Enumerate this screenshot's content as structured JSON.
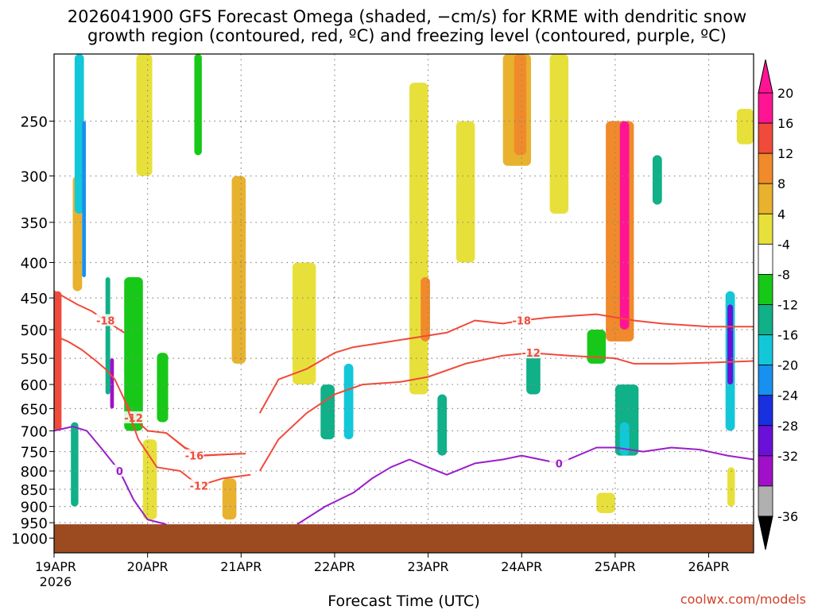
{
  "title_line1": "2026041900 GFS Forecast Omega (shaded, −cm/s) for KRME with dendritic snow",
  "title_line2": "growth region (contoured, red, ºC) and freezing level (contoured, purple, ºC)",
  "credit": "coolwx.com/models",
  "colors": {
    "ground": "#9c4a20",
    "dgz": "#f04a3a",
    "freezing": "#9a1ec8",
    "grid": "#888888"
  },
  "chart_data": {
    "type": "heatmap",
    "xlabel": "Forecast Time (UTC)",
    "ylabel": "",
    "x_ticks": [
      "19APR",
      "20APR",
      "21APR",
      "22APR",
      "23APR",
      "24APR",
      "25APR",
      "26APR"
    ],
    "x_year": "2026",
    "x_range_days": [
      0,
      7.48
    ],
    "y_scale": "log-pressure",
    "y_range_hpa": [
      1050,
      200
    ],
    "y_ticks": [
      250,
      300,
      350,
      400,
      450,
      500,
      550,
      600,
      650,
      700,
      750,
      800,
      850,
      900,
      950,
      1000
    ],
    "ground_top_hpa": 955,
    "colorbar": {
      "labels": [
        "20",
        "16",
        "12",
        "8",
        "4",
        "-4",
        "-8",
        "-12",
        "-16",
        "-20",
        "-24",
        "-28",
        "-32",
        "-36"
      ],
      "levels": [
        {
          "color": "#ff1494"
        },
        {
          "color": "#f04a3a"
        },
        {
          "color": "#f08a2a"
        },
        {
          "color": "#e8b22e"
        },
        {
          "color": "#e8e03a"
        },
        {
          "color": "#ffffff"
        },
        {
          "color": "#18c818"
        },
        {
          "color": "#10b088"
        },
        {
          "color": "#12c8d8"
        },
        {
          "color": "#1890f0"
        },
        {
          "color": "#1830e0"
        },
        {
          "color": "#6a10d8"
        },
        {
          "color": "#a010c8"
        },
        {
          "color": "#b0b0b0"
        }
      ],
      "arrow_top_color": "#ff1494",
      "arrow_bottom_color": "#000000"
    },
    "omega_cells": [
      {
        "t0": 0.2,
        "t1": 0.3,
        "p0": 300,
        "p1": 440,
        "v": 10
      },
      {
        "t0": 0.0,
        "t1": 0.08,
        "p0": 440,
        "p1": 700,
        "v": 18
      },
      {
        "t0": 0.22,
        "t1": 0.32,
        "p0": 200,
        "p1": 340,
        "v": -12
      },
      {
        "t0": 0.3,
        "t1": 0.34,
        "p0": 250,
        "p1": 420,
        "v": -16
      },
      {
        "t0": 0.18,
        "t1": 0.26,
        "p0": 680,
        "p1": 900,
        "v": -10
      },
      {
        "t0": 0.55,
        "t1": 0.6,
        "p0": 420,
        "p1": 620,
        "v": -10
      },
      {
        "t0": 0.6,
        "t1": 0.64,
        "p0": 550,
        "p1": 650,
        "v": -28
      },
      {
        "t0": 0.75,
        "t1": 0.95,
        "p0": 420,
        "p1": 700,
        "v": -6
      },
      {
        "t0": 0.88,
        "t1": 1.05,
        "p0": 200,
        "p1": 300,
        "v": 6
      },
      {
        "t0": 0.95,
        "t1": 1.1,
        "p0": 720,
        "p1": 940,
        "v": 6
      },
      {
        "t0": 1.5,
        "t1": 1.58,
        "p0": 200,
        "p1": 280,
        "v": -6
      },
      {
        "t0": 1.1,
        "t1": 1.22,
        "p0": 540,
        "p1": 680,
        "v": -6
      },
      {
        "t0": 1.9,
        "t1": 2.05,
        "p0": 300,
        "p1": 560,
        "v": 8
      },
      {
        "t0": 1.8,
        "t1": 1.95,
        "p0": 820,
        "p1": 940,
        "v": 10
      },
      {
        "t0": 2.55,
        "t1": 2.8,
        "p0": 400,
        "p1": 600,
        "v": 5
      },
      {
        "t0": 3.1,
        "t1": 3.2,
        "p0": 560,
        "p1": 720,
        "v": -14
      },
      {
        "t0": 2.85,
        "t1": 3.0,
        "p0": 600,
        "p1": 720,
        "v": -8
      },
      {
        "t0": 3.8,
        "t1": 4.0,
        "p0": 220,
        "p1": 620,
        "v": 6
      },
      {
        "t0": 3.92,
        "t1": 4.02,
        "p0": 420,
        "p1": 520,
        "v": 12
      },
      {
        "t0": 4.1,
        "t1": 4.2,
        "p0": 620,
        "p1": 760,
        "v": -8
      },
      {
        "t0": 4.3,
        "t1": 4.5,
        "p0": 250,
        "p1": 400,
        "v": 5
      },
      {
        "t0": 4.8,
        "t1": 5.1,
        "p0": 200,
        "p1": 290,
        "v": 8
      },
      {
        "t0": 4.92,
        "t1": 5.05,
        "p0": 200,
        "p1": 280,
        "v": 12
      },
      {
        "t0": 5.3,
        "t1": 5.5,
        "p0": 200,
        "p1": 340,
        "v": 6
      },
      {
        "t0": 5.05,
        "t1": 5.2,
        "p0": 540,
        "p1": 620,
        "v": -8
      },
      {
        "t0": 5.7,
        "t1": 5.9,
        "p0": 500,
        "p1": 560,
        "v": -6
      },
      {
        "t0": 5.9,
        "t1": 6.2,
        "p0": 250,
        "p1": 520,
        "v": 12
      },
      {
        "t0": 6.05,
        "t1": 6.15,
        "p0": 250,
        "p1": 500,
        "v": 20
      },
      {
        "t0": 6.0,
        "t1": 6.25,
        "p0": 600,
        "p1": 760,
        "v": -8
      },
      {
        "t0": 6.05,
        "t1": 6.15,
        "p0": 680,
        "p1": 760,
        "v": -14
      },
      {
        "t0": 6.4,
        "t1": 6.5,
        "p0": 280,
        "p1": 330,
        "v": -10
      },
      {
        "t0": 5.8,
        "t1": 6.0,
        "p0": 860,
        "p1": 920,
        "v": 6
      },
      {
        "t0": 7.18,
        "t1": 7.28,
        "p0": 440,
        "p1": 700,
        "v": -14
      },
      {
        "t0": 7.2,
        "t1": 7.26,
        "p0": 460,
        "p1": 600,
        "v": -24
      },
      {
        "t0": 7.3,
        "t1": 7.48,
        "p0": 240,
        "p1": 270,
        "v": 6
      },
      {
        "t0": 7.2,
        "t1": 7.28,
        "p0": 790,
        "p1": 900,
        "v": 6
      }
    ],
    "contours": [
      {
        "label": "-18",
        "color": "dgz",
        "points": [
          [
            0,
            440
          ],
          [
            0.25,
            460
          ],
          [
            0.4,
            470
          ],
          [
            0.55,
            485
          ],
          [
            0.65,
            495
          ],
          [
            0.75,
            505
          ]
        ]
      },
      {
        "label": "-12",
        "color": "dgz",
        "points": [
          [
            0,
            510
          ],
          [
            0.15,
            520
          ],
          [
            0.3,
            535
          ],
          [
            0.45,
            555
          ],
          [
            0.55,
            570
          ],
          [
            0.65,
            590
          ],
          [
            0.75,
            630
          ],
          [
            0.85,
            670
          ],
          [
            1.0,
            700
          ],
          [
            1.2,
            705
          ],
          [
            1.4,
            740
          ],
          [
            1.6,
            760
          ],
          [
            2.0,
            755
          ]
        ]
      },
      {
        "label": "-16",
        "color": "dgz",
        "points": [
          [
            1.2,
            705
          ],
          [
            1.5,
            760
          ],
          [
            2.05,
            755
          ]
        ]
      },
      {
        "label": "-12",
        "color": "dgz",
        "points": [
          [
            0.75,
            630
          ],
          [
            0.9,
            720
          ],
          [
            1.1,
            790
          ],
          [
            1.35,
            800
          ],
          [
            1.55,
            840
          ],
          [
            1.8,
            820
          ],
          [
            2.1,
            810
          ]
        ]
      },
      {
        "label": "-18",
        "color": "dgz",
        "points": [
          [
            2.2,
            660
          ],
          [
            2.4,
            590
          ],
          [
            2.7,
            570
          ],
          [
            3.0,
            540
          ],
          [
            3.2,
            530
          ],
          [
            3.6,
            520
          ],
          [
            4.0,
            510
          ],
          [
            4.2,
            505
          ],
          [
            4.5,
            485
          ],
          [
            4.8,
            490
          ],
          [
            5.0,
            485
          ],
          [
            5.3,
            480
          ],
          [
            5.8,
            475
          ],
          [
            6.2,
            485
          ],
          [
            6.5,
            490
          ],
          [
            7.0,
            495
          ],
          [
            7.48,
            495
          ]
        ]
      },
      {
        "label": "-12",
        "color": "dgz",
        "points": [
          [
            2.2,
            800
          ],
          [
            2.4,
            720
          ],
          [
            2.7,
            660
          ],
          [
            3.0,
            620
          ],
          [
            3.3,
            600
          ],
          [
            3.7,
            595
          ],
          [
            4.0,
            585
          ],
          [
            4.4,
            560
          ],
          [
            4.8,
            545
          ],
          [
            5.1,
            540
          ],
          [
            5.5,
            545
          ],
          [
            6.0,
            550
          ],
          [
            6.2,
            560
          ],
          [
            6.6,
            560
          ],
          [
            7.0,
            558
          ],
          [
            7.48,
            555
          ]
        ]
      },
      {
        "label": "0",
        "color": "freezing",
        "points": [
          [
            0,
            700
          ],
          [
            0.2,
            690
          ],
          [
            0.35,
            700
          ],
          [
            0.5,
            740
          ],
          [
            0.7,
            800
          ],
          [
            0.85,
            880
          ],
          [
            1.0,
            940
          ],
          [
            1.2,
            955
          ]
        ]
      },
      {
        "label": "0",
        "color": "freezing",
        "points": [
          [
            2.6,
            955
          ],
          [
            2.9,
            900
          ],
          [
            3.2,
            860
          ],
          [
            3.4,
            820
          ],
          [
            3.6,
            790
          ],
          [
            3.8,
            770
          ],
          [
            4.0,
            790
          ],
          [
            4.2,
            810
          ],
          [
            4.5,
            780
          ],
          [
            4.8,
            770
          ],
          [
            5.0,
            760
          ],
          [
            5.2,
            770
          ],
          [
            5.4,
            780
          ],
          [
            5.8,
            740
          ],
          [
            6.0,
            740
          ],
          [
            6.3,
            750
          ],
          [
            6.6,
            740
          ],
          [
            6.9,
            745
          ],
          [
            7.2,
            760
          ],
          [
            7.48,
            770
          ]
        ]
      }
    ]
  }
}
